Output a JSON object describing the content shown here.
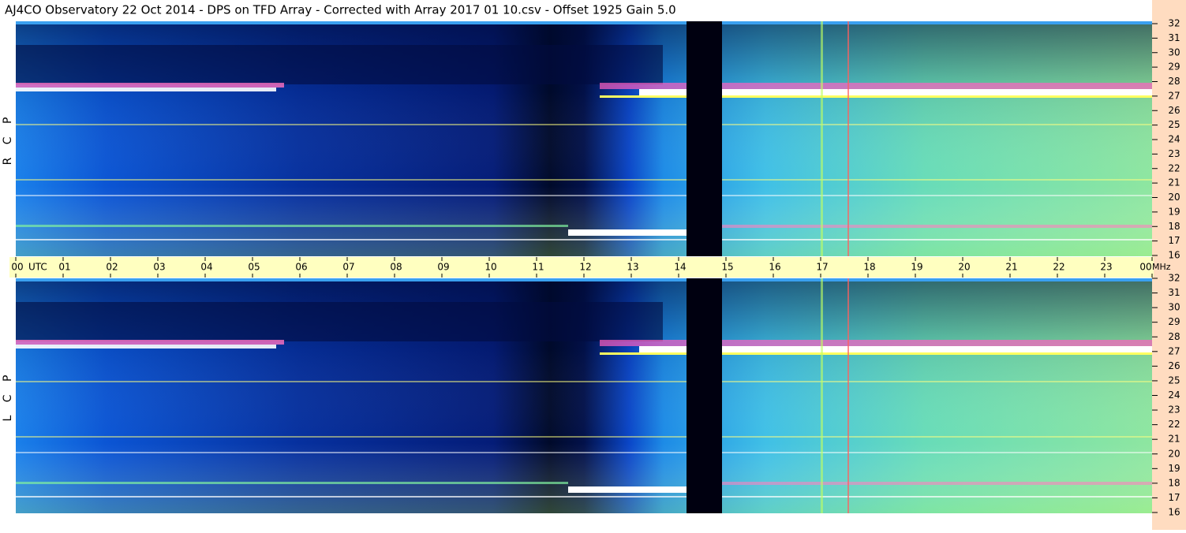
{
  "title": "AJ4CO Observatory  22 Oct 2014  -  DPS on TFD Array  -  Corrected with Array 2017 01 10.csv  -  Offset 1925  Gain 5.0",
  "panels": [
    {
      "label": "R C P"
    },
    {
      "label": "L C P"
    }
  ],
  "time_axis": {
    "hours": [
      "00",
      "01",
      "02",
      "03",
      "04",
      "05",
      "06",
      "07",
      "08",
      "09",
      "10",
      "11",
      "12",
      "13",
      "14",
      "15",
      "16",
      "17",
      "18",
      "19",
      "20",
      "21",
      "22",
      "23",
      "00"
    ],
    "left_unit": "UTC",
    "right_unit": "MHz"
  },
  "freq_ticks": [
    "32",
    "31",
    "30",
    "29",
    "28",
    "27",
    "26",
    "25",
    "24",
    "23",
    "22",
    "21",
    "20",
    "19",
    "18",
    "17",
    "16"
  ]
}
